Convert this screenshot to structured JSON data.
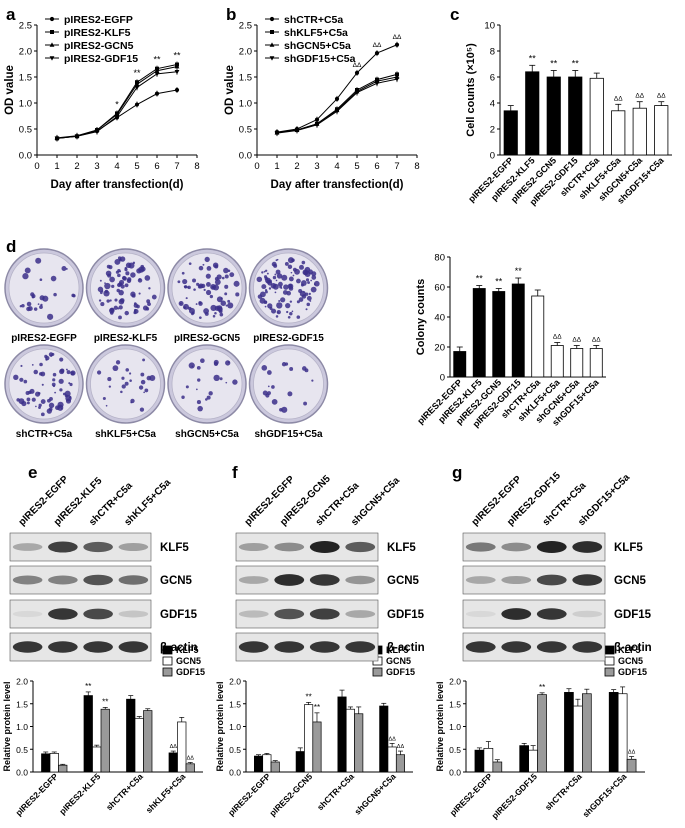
{
  "panels": {
    "a": {
      "label": "a"
    },
    "b": {
      "label": "b"
    },
    "c": {
      "label": "c"
    },
    "d": {
      "label": "d"
    },
    "e": {
      "label": "e"
    },
    "f": {
      "label": "f"
    },
    "g": {
      "label": "g"
    }
  },
  "dishes": {
    "top": [
      "pIRES2-EGFP",
      "pIRES2-KLF5",
      "pIRES2-GCN5",
      "pIRES2-GDF15"
    ],
    "bottom": [
      "shCTR+C5a",
      "shKLF5+C5a",
      "shGCN5+C5a",
      "shGDF15+C5a"
    ]
  },
  "blots": [
    {
      "lanes": [
        "pIRES2-EGFP",
        "pIRES2-KLF5",
        "shCTR+C5a",
        "shKLF5+C5a"
      ],
      "rows": [
        "KLF5",
        "GCN5",
        "GDF15",
        "β-actin"
      ]
    },
    {
      "lanes": [
        "pIRES2-EGFP",
        "pIRES2-GCN5",
        "shCTR+C5a",
        "shGCN5+C5a"
      ],
      "rows": [
        "KLF5",
        "GCN5",
        "GDF15",
        "β-actin"
      ]
    },
    {
      "lanes": [
        "pIRES2-EGFP",
        "pIRES2-GDF15",
        "shCTR+C5a",
        "shGDF15+C5a"
      ],
      "rows": [
        "KLF5",
        "GCN5",
        "GDF15",
        "β-actin"
      ]
    }
  ],
  "colors": {
    "black": "#000000",
    "white": "#ffffff",
    "gray": "#9a9a9a",
    "dish_stain": "#3b2f8a"
  },
  "chart_data": [
    {
      "id": "a",
      "type": "line",
      "xlabel": "Day after transfection(d)",
      "ylabel": "OD value",
      "xlim": [
        0,
        8
      ],
      "ylim": [
        0.0,
        2.5
      ],
      "xticks": [
        0,
        1,
        2,
        3,
        4,
        5,
        6,
        7,
        8
      ],
      "yticks": [
        "0.0",
        "0.5",
        "1.0",
        "1.5",
        "2.0",
        "2.5"
      ],
      "x": [
        1,
        2,
        3,
        4,
        5,
        6,
        7
      ],
      "series": [
        {
          "name": "pIRES2-EGFP",
          "values": [
            0.32,
            0.36,
            0.46,
            0.72,
            0.97,
            1.18,
            1.25
          ]
        },
        {
          "name": "pIRES2-KLF5",
          "values": [
            0.32,
            0.36,
            0.48,
            0.8,
            1.4,
            1.66,
            1.74
          ]
        },
        {
          "name": "pIRES2-GCN5",
          "values": [
            0.33,
            0.37,
            0.48,
            0.78,
            1.36,
            1.62,
            1.7
          ]
        },
        {
          "name": "pIRES2-GDF15",
          "values": [
            0.32,
            0.36,
            0.45,
            0.74,
            1.3,
            1.56,
            1.6
          ]
        }
      ],
      "annotations": [
        {
          "x": 4,
          "text": "*"
        },
        {
          "x": 5,
          "text": "**"
        },
        {
          "x": 6,
          "text": "**"
        },
        {
          "x": 7,
          "text": "**"
        }
      ]
    },
    {
      "id": "b",
      "type": "line",
      "xlabel": "Day after transfection(d)",
      "ylabel": "OD value",
      "xlim": [
        0,
        8
      ],
      "ylim": [
        0.0,
        2.5
      ],
      "xticks": [
        0,
        1,
        2,
        3,
        4,
        5,
        6,
        7,
        8
      ],
      "yticks": [
        "0.0",
        "0.5",
        "1.0",
        "1.5",
        "2.0",
        "2.5"
      ],
      "x": [
        1,
        2,
        3,
        4,
        5,
        6,
        7
      ],
      "series": [
        {
          "name": "shCTR+C5a",
          "values": [
            0.44,
            0.5,
            0.68,
            1.08,
            1.58,
            1.96,
            2.12
          ]
        },
        {
          "name": "shKLF5+C5a",
          "values": [
            0.43,
            0.48,
            0.6,
            0.88,
            1.25,
            1.45,
            1.55
          ]
        },
        {
          "name": "shGCN5+C5a",
          "values": [
            0.43,
            0.48,
            0.6,
            0.86,
            1.22,
            1.42,
            1.5
          ]
        },
        {
          "name": "shGDF15+C5a",
          "values": [
            0.42,
            0.47,
            0.58,
            0.84,
            1.2,
            1.38,
            1.46
          ]
        }
      ],
      "annotations": [
        {
          "x": 5,
          "text": "ΔΔ"
        },
        {
          "x": 6,
          "text": "ΔΔ"
        },
        {
          "x": 7,
          "text": "ΔΔ"
        }
      ]
    },
    {
      "id": "c",
      "type": "bar",
      "ylabel": "Cell counts (×10⁵)",
      "ylim": [
        0,
        10
      ],
      "yticks": [
        "0",
        "2",
        "4",
        "6",
        "8",
        "10"
      ],
      "categories": [
        "pIRES2-EGFP",
        "pIRES2-KLF5",
        "pIRES2-GCN5",
        "pIRES2-GDF15",
        "shCTR+C5a",
        "shKLF5+C5a",
        "shGCN5+C5a",
        "shGDF15+C5a"
      ],
      "values": [
        3.4,
        6.4,
        6.0,
        6.0,
        5.9,
        3.4,
        3.6,
        3.8
      ],
      "errors": [
        0.4,
        0.5,
        0.5,
        0.5,
        0.4,
        0.5,
        0.5,
        0.3
      ],
      "fills": [
        "black",
        "black",
        "black",
        "black",
        "white",
        "white",
        "white",
        "white"
      ],
      "annotations": [
        "",
        "**",
        "**",
        "**",
        "",
        "ΔΔ",
        "ΔΔ",
        "ΔΔ"
      ]
    },
    {
      "id": "d",
      "type": "bar",
      "ylabel": "Colony counts",
      "ylim": [
        0,
        80
      ],
      "yticks": [
        "0",
        "20",
        "40",
        "60",
        "80"
      ],
      "categories": [
        "pIRES2-EGFP",
        "pIRES2-KLF5",
        "pIRES2-GCN5",
        "pIRES2-GDF15",
        "shCTR+C5a",
        "shKLF5+C5a",
        "shGCN5+C5a",
        "shGDF15+C5a"
      ],
      "values": [
        17,
        59,
        57,
        62,
        54,
        21,
        19,
        19
      ],
      "errors": [
        3,
        2,
        2,
        4,
        4,
        2,
        2,
        2
      ],
      "fills": [
        "black",
        "black",
        "black",
        "black",
        "white",
        "white",
        "white",
        "white"
      ],
      "annotations": [
        "",
        "**",
        "**",
        "**",
        "",
        "ΔΔ",
        "ΔΔ",
        "ΔΔ"
      ]
    },
    {
      "id": "e",
      "type": "bar",
      "ylabel": "Relative protein level",
      "ylim": [
        0,
        2.0
      ],
      "yticks": [
        "0.0",
        "0.5",
        "1.0",
        "1.5",
        "2.0"
      ],
      "categories": [
        "pIRES2-EGFP",
        "pIRES2-KLF5",
        "shCTR+C5a",
        "shKLF5+C5a"
      ],
      "series": [
        {
          "name": "KLF5",
          "fill": "black",
          "values": [
            0.4,
            1.68,
            1.6,
            0.42
          ],
          "errors": [
            0.04,
            0.08,
            0.08,
            0.04
          ]
        },
        {
          "name": "GCN5",
          "fill": "white",
          "values": [
            0.41,
            0.55,
            1.18,
            1.1
          ],
          "errors": [
            0.03,
            0.04,
            0.04,
            0.1
          ]
        },
        {
          "name": "GDF15",
          "fill": "gray",
          "values": [
            0.15,
            1.38,
            1.35,
            0.18
          ],
          "errors": [
            0.02,
            0.04,
            0.04,
            0.03
          ]
        }
      ],
      "annotations": [
        {
          "group": 1,
          "series": 0,
          "text": "**"
        },
        {
          "group": 1,
          "series": 2,
          "text": "**"
        },
        {
          "group": 3,
          "series": 0,
          "text": "ΔΔ"
        },
        {
          "group": 3,
          "series": 2,
          "text": "ΔΔ"
        }
      ]
    },
    {
      "id": "f",
      "type": "bar",
      "ylabel": "Relative protein level",
      "ylim": [
        0,
        2.0
      ],
      "yticks": [
        "0.0",
        "0.5",
        "1.0",
        "1.5",
        "2.0"
      ],
      "categories": [
        "pIRES2-EGFP",
        "pIRES2-GCN5",
        "shCTR+C5a",
        "shGCN5+C5a"
      ],
      "series": [
        {
          "name": "KLF5",
          "fill": "black",
          "values": [
            0.35,
            0.45,
            1.65,
            1.45
          ],
          "errors": [
            0.03,
            0.08,
            0.15,
            0.06
          ]
        },
        {
          "name": "GCN5",
          "fill": "white",
          "values": [
            0.38,
            1.48,
            1.38,
            0.55
          ],
          "errors": [
            0.03,
            0.05,
            0.05,
            0.08
          ]
        },
        {
          "name": "GDF15",
          "fill": "gray",
          "values": [
            0.22,
            1.1,
            1.28,
            0.38
          ],
          "errors": [
            0.03,
            0.2,
            0.15,
            0.08
          ]
        }
      ],
      "annotations": [
        {
          "group": 1,
          "series": 1,
          "text": "**"
        },
        {
          "group": 1,
          "series": 2,
          "text": "**"
        },
        {
          "group": 3,
          "series": 1,
          "text": "ΔΔ"
        },
        {
          "group": 3,
          "series": 2,
          "text": "ΔΔ"
        }
      ]
    },
    {
      "id": "g",
      "type": "bar",
      "ylabel": "Relative protein level",
      "ylim": [
        0,
        2.0
      ],
      "yticks": [
        "0.0",
        "0.5",
        "1.0",
        "1.5",
        "2.0"
      ],
      "categories": [
        "pIRES2-EGFP",
        "pIRES2-GDF15",
        "shCTR+C5a",
        "shGDF15+C5a"
      ],
      "series": [
        {
          "name": "KLF5",
          "fill": "black",
          "values": [
            0.48,
            0.58,
            1.75,
            1.75
          ],
          "errors": [
            0.05,
            0.05,
            0.08,
            0.06
          ]
        },
        {
          "name": "GCN5",
          "fill": "white",
          "values": [
            0.52,
            0.48,
            1.45,
            1.72
          ],
          "errors": [
            0.15,
            0.1,
            0.15,
            0.15
          ]
        },
        {
          "name": "GDF15",
          "fill": "gray",
          "values": [
            0.22,
            1.7,
            1.72,
            0.28
          ],
          "errors": [
            0.05,
            0.04,
            0.1,
            0.06
          ]
        }
      ],
      "annotations": [
        {
          "group": 1,
          "series": 2,
          "text": "**"
        },
        {
          "group": 3,
          "series": 2,
          "text": "ΔΔ"
        }
      ]
    }
  ]
}
